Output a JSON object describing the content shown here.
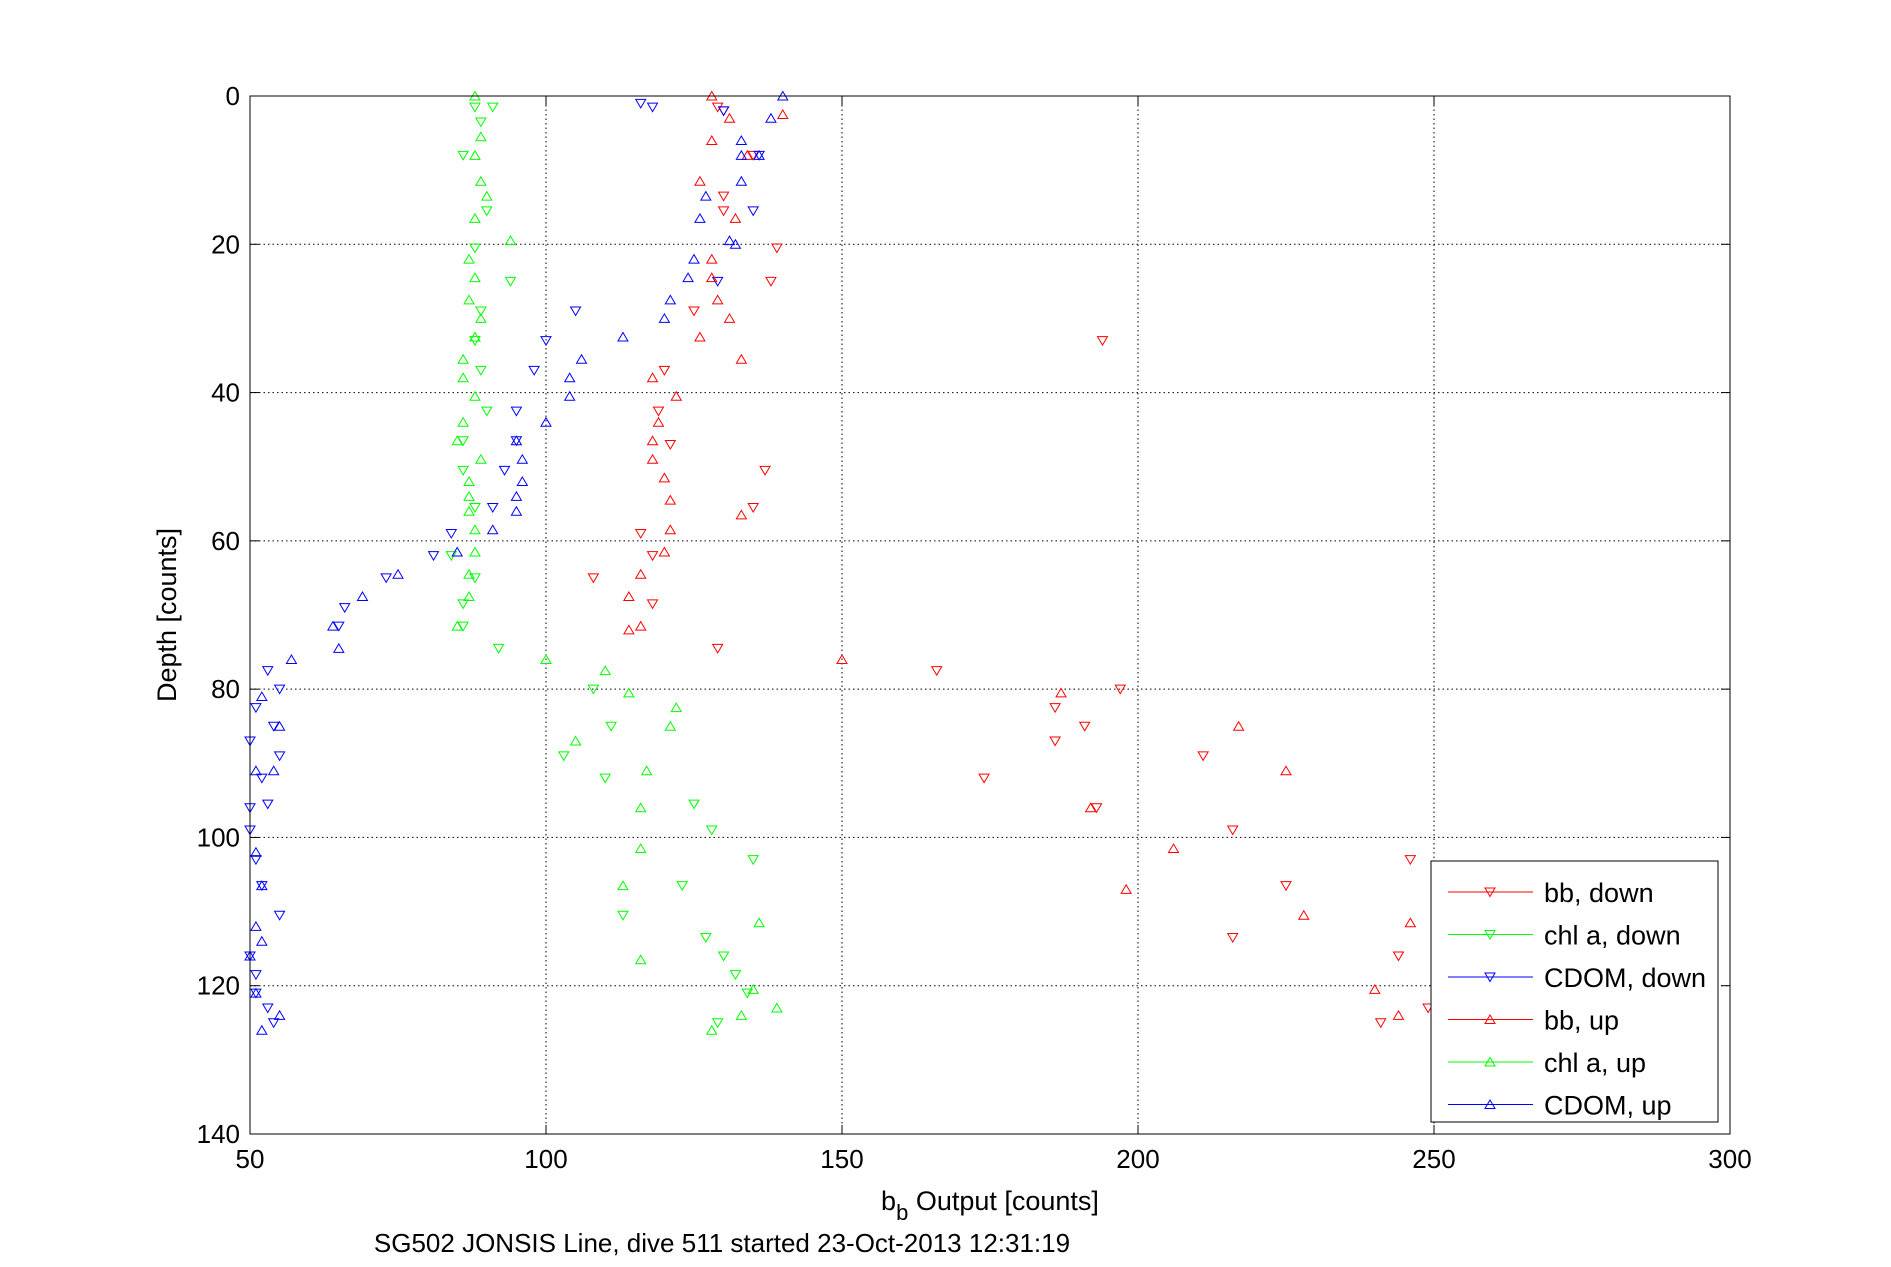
{
  "chart_data": {
    "type": "scatter",
    "title": "SG502 JONSIS Line, dive 511 started 23-Oct-2013 12:31:19",
    "xlabel_main": "b",
    "xlabel_sub": "b",
    "xlabel_rest": " Output [counts]",
    "ylabel": "Depth [counts]",
    "xlim": [
      50,
      300
    ],
    "ylim": [
      0,
      140
    ],
    "y_reversed": true,
    "xticks": [
      50,
      100,
      150,
      200,
      250,
      300
    ],
    "yticks": [
      0,
      20,
      40,
      60,
      80,
      100,
      120,
      140
    ],
    "grid": true,
    "legend_position": "bottom-right",
    "series": [
      {
        "name": "bb, down",
        "color": "#ff0000",
        "marker": "down",
        "points": [
          [
            129,
            1.5
          ],
          [
            130,
            2
          ],
          [
            135,
            8
          ],
          [
            130,
            13.5
          ],
          [
            130,
            15.5
          ],
          [
            139,
            20.5
          ],
          [
            138,
            25
          ],
          [
            125,
            29
          ],
          [
            194,
            33
          ],
          [
            120,
            37
          ],
          [
            119,
            42.5
          ],
          [
            121,
            47
          ],
          [
            137,
            50.5
          ],
          [
            135,
            55.5
          ],
          [
            116,
            59
          ],
          [
            118,
            62
          ],
          [
            108,
            65
          ],
          [
            118,
            68.5
          ],
          [
            129,
            74.5
          ],
          [
            166,
            77.5
          ],
          [
            197,
            80
          ],
          [
            186,
            82.5
          ],
          [
            191,
            85
          ],
          [
            186,
            87
          ],
          [
            211,
            89
          ],
          [
            174,
            92
          ],
          [
            193,
            96
          ],
          [
            216,
            99
          ],
          [
            246,
            103
          ],
          [
            225,
            106.5
          ],
          [
            216,
            113.5
          ],
          [
            244,
            116
          ],
          [
            249,
            123
          ],
          [
            241,
            125
          ]
        ]
      },
      {
        "name": "chl a, down",
        "color": "#00ff00",
        "marker": "down",
        "points": [
          [
            88,
            1.5
          ],
          [
            91,
            1.5
          ],
          [
            89,
            3.5
          ],
          [
            86,
            8
          ],
          [
            90,
            15.5
          ],
          [
            88,
            20.5
          ],
          [
            94,
            25
          ],
          [
            89,
            29
          ],
          [
            88,
            33
          ],
          [
            89,
            37
          ],
          [
            90,
            42.5
          ],
          [
            86,
            46.5
          ],
          [
            86,
            50.5
          ],
          [
            88,
            55.5
          ],
          [
            84,
            62
          ],
          [
            88,
            65
          ],
          [
            86,
            68.5
          ],
          [
            86,
            71.5
          ],
          [
            92,
            74.5
          ],
          [
            108,
            80
          ],
          [
            111,
            85
          ],
          [
            103,
            89
          ],
          [
            110,
            92
          ],
          [
            125,
            95.5
          ],
          [
            128,
            99
          ],
          [
            135,
            103
          ],
          [
            123,
            106.5
          ],
          [
            113,
            110.5
          ],
          [
            127,
            113.5
          ],
          [
            130,
            116
          ],
          [
            132,
            118.5
          ],
          [
            134,
            121
          ],
          [
            129,
            125
          ]
        ]
      },
      {
        "name": "CDOM, down",
        "color": "#0000ff",
        "marker": "down",
        "points": [
          [
            116,
            1
          ],
          [
            118,
            1.5
          ],
          [
            130,
            2
          ],
          [
            136,
            8
          ],
          [
            135,
            15.5
          ],
          [
            129,
            25
          ],
          [
            105,
            29
          ],
          [
            100,
            33
          ],
          [
            98,
            37
          ],
          [
            95,
            42.5
          ],
          [
            95,
            46.5
          ],
          [
            93,
            50.5
          ],
          [
            91,
            55.5
          ],
          [
            84,
            59
          ],
          [
            81,
            62
          ],
          [
            73,
            65
          ],
          [
            66,
            69
          ],
          [
            65,
            71.5
          ],
          [
            53,
            77.5
          ],
          [
            55,
            80
          ],
          [
            51,
            82.5
          ],
          [
            54,
            85
          ],
          [
            50,
            87
          ],
          [
            55,
            89
          ],
          [
            52,
            92
          ],
          [
            53,
            95.5
          ],
          [
            50,
            96
          ],
          [
            50,
            99
          ],
          [
            51,
            103
          ],
          [
            52,
            106.5
          ],
          [
            55,
            110.5
          ],
          [
            50,
            116
          ],
          [
            51,
            118.5
          ],
          [
            51,
            121
          ],
          [
            53,
            123
          ],
          [
            54,
            125
          ]
        ]
      },
      {
        "name": "bb, up",
        "color": "#ff0000",
        "marker": "up",
        "points": [
          [
            128,
            0
          ],
          [
            140,
            2.5
          ],
          [
            131,
            3
          ],
          [
            128,
            6
          ],
          [
            134,
            8
          ],
          [
            126,
            11.5
          ],
          [
            132,
            16.5
          ],
          [
            128,
            22
          ],
          [
            128,
            24.5
          ],
          [
            129,
            27.5
          ],
          [
            131,
            30
          ],
          [
            126,
            32.5
          ],
          [
            133,
            35.5
          ],
          [
            118,
            38
          ],
          [
            122,
            40.5
          ],
          [
            119,
            44
          ],
          [
            118,
            46.5
          ],
          [
            118,
            49
          ],
          [
            120,
            51.5
          ],
          [
            121,
            54.5
          ],
          [
            133,
            56.5
          ],
          [
            121,
            58.5
          ],
          [
            120,
            61.5
          ],
          [
            116,
            64.5
          ],
          [
            114,
            67.5
          ],
          [
            116,
            71.5
          ],
          [
            114,
            72
          ],
          [
            150,
            76
          ],
          [
            187,
            80.5
          ],
          [
            217,
            85
          ],
          [
            225,
            91
          ],
          [
            192,
            96
          ],
          [
            206,
            101.5
          ],
          [
            198,
            107
          ],
          [
            228,
            110.5
          ],
          [
            246,
            111.5
          ],
          [
            240,
            120.5
          ],
          [
            244,
            124
          ]
        ]
      },
      {
        "name": "chl a, up",
        "color": "#00ff00",
        "marker": "up",
        "points": [
          [
            88,
            0
          ],
          [
            89,
            5.5
          ],
          [
            88,
            8
          ],
          [
            89,
            11.5
          ],
          [
            90,
            13.5
          ],
          [
            88,
            16.5
          ],
          [
            94,
            19.5
          ],
          [
            87,
            22
          ],
          [
            88,
            24.5
          ],
          [
            87,
            27.5
          ],
          [
            89,
            30
          ],
          [
            88,
            32.5
          ],
          [
            86,
            35.5
          ],
          [
            86,
            38
          ],
          [
            88,
            40.5
          ],
          [
            86,
            44
          ],
          [
            85,
            46.5
          ],
          [
            89,
            49
          ],
          [
            87,
            52
          ],
          [
            87,
            54
          ],
          [
            87,
            56
          ],
          [
            88,
            58.5
          ],
          [
            88,
            61.5
          ],
          [
            87,
            64.5
          ],
          [
            87,
            67.5
          ],
          [
            85,
            71.5
          ],
          [
            100,
            76
          ],
          [
            110,
            77.5
          ],
          [
            114,
            80.5
          ],
          [
            122,
            82.5
          ],
          [
            121,
            85
          ],
          [
            105,
            87
          ],
          [
            117,
            91
          ],
          [
            116,
            96
          ],
          [
            116,
            101.5
          ],
          [
            113,
            106.5
          ],
          [
            136,
            111.5
          ],
          [
            116,
            116.5
          ],
          [
            135,
            120.5
          ],
          [
            139,
            123
          ],
          [
            133,
            124
          ],
          [
            128,
            126
          ]
        ]
      },
      {
        "name": "CDOM, up",
        "color": "#0000ff",
        "marker": "up",
        "points": [
          [
            140,
            0
          ],
          [
            138,
            3
          ],
          [
            133,
            6
          ],
          [
            133,
            8
          ],
          [
            136,
            8
          ],
          [
            133,
            11.5
          ],
          [
            127,
            13.5
          ],
          [
            126,
            16.5
          ],
          [
            131,
            19.5
          ],
          [
            132,
            20
          ],
          [
            125,
            22
          ],
          [
            124,
            24.5
          ],
          [
            121,
            27.5
          ],
          [
            120,
            30
          ],
          [
            113,
            32.5
          ],
          [
            106,
            35.5
          ],
          [
            104,
            38
          ],
          [
            104,
            40.5
          ],
          [
            100,
            44
          ],
          [
            95,
            46.5
          ],
          [
            96,
            49
          ],
          [
            96,
            52
          ],
          [
            95,
            54
          ],
          [
            95,
            56
          ],
          [
            91,
            58.5
          ],
          [
            85,
            61.5
          ],
          [
            75,
            64.5
          ],
          [
            69,
            67.5
          ],
          [
            64,
            71.5
          ],
          [
            65,
            74.5
          ],
          [
            57,
            76
          ],
          [
            52,
            81
          ],
          [
            55,
            85
          ],
          [
            51,
            91
          ],
          [
            54,
            91
          ],
          [
            51,
            102
          ],
          [
            52,
            106.5
          ],
          [
            51,
            112
          ],
          [
            52,
            114
          ],
          [
            50,
            116
          ],
          [
            51,
            121
          ],
          [
            55,
            124
          ],
          [
            52,
            126
          ]
        ]
      }
    ]
  }
}
